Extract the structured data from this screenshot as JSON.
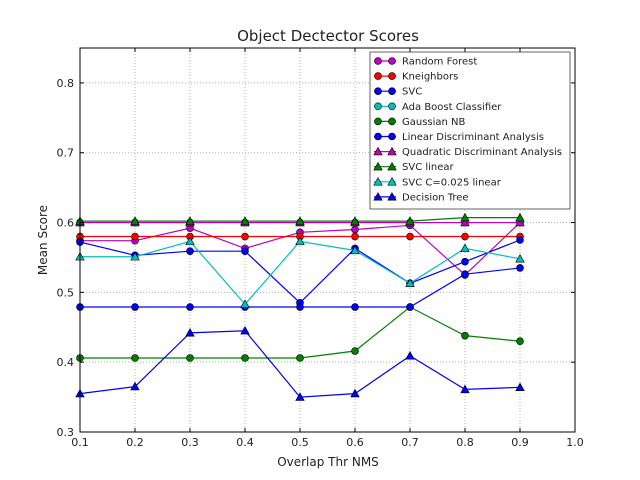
{
  "chart_data": {
    "type": "line",
    "title": "Object Dectector Scores",
    "xlabel": "Overlap Thr NMS",
    "ylabel": "Mean Score",
    "xlim": [
      0.1,
      1.0
    ],
    "ylim": [
      0.3,
      0.85
    ],
    "xticks": [
      "0.1",
      "0.2",
      "0.3",
      "0.4",
      "0.5",
      "0.6",
      "0.7",
      "0.8",
      "0.9",
      "1.0"
    ],
    "yticks": [
      "0.3",
      "0.4",
      "0.5",
      "0.6",
      "0.7",
      "0.8"
    ],
    "x": [
      0.1,
      0.2,
      0.3,
      0.4,
      0.5,
      0.6,
      0.7,
      0.8,
      0.9
    ],
    "grid": true,
    "legend_position": "top-right",
    "series": [
      {
        "name": "Random Forest",
        "color": "#bf00bf",
        "marker": "circle",
        "values": [
          0.574,
          0.574,
          0.592,
          0.563,
          0.586,
          0.59,
          0.596,
          0.525,
          0.6
        ]
      },
      {
        "name": "Kneighbors",
        "color": "#ff0000",
        "marker": "circle",
        "values": [
          0.58,
          0.58,
          0.58,
          0.58,
          0.58,
          0.58,
          0.58,
          0.58,
          0.58
        ]
      },
      {
        "name": "SVC",
        "color": "#0000ff",
        "marker": "circle",
        "values": [
          0.572,
          0.553,
          0.559,
          0.559,
          0.485,
          0.563,
          0.513,
          0.544,
          0.575
        ]
      },
      {
        "name": "Ada Boost Classifier",
        "color": "#00bfbf",
        "marker": "circle",
        "values": [
          0.6,
          0.6,
          0.6,
          0.6,
          0.6,
          0.6,
          0.6,
          0.6,
          0.6
        ]
      },
      {
        "name": "Gaussian NB",
        "color": "#008000",
        "marker": "circle",
        "values": [
          0.406,
          0.406,
          0.406,
          0.406,
          0.406,
          0.416,
          0.479,
          0.438,
          0.43
        ]
      },
      {
        "name": "Linear Discriminant Analysis",
        "color": "#0000ff",
        "marker": "circle",
        "values": [
          0.479,
          0.479,
          0.479,
          0.479,
          0.479,
          0.479,
          0.479,
          0.526,
          0.535
        ]
      },
      {
        "name": "Quadratic Discriminant Analysis",
        "color": "#bf00bf",
        "marker": "triangle",
        "values": [
          0.6,
          0.6,
          0.6,
          0.6,
          0.6,
          0.6,
          0.6,
          0.6,
          0.6
        ]
      },
      {
        "name": "SVC linear",
        "color": "#008000",
        "marker": "triangle",
        "values": [
          0.602,
          0.602,
          0.602,
          0.602,
          0.602,
          0.602,
          0.602,
          0.607,
          0.607
        ]
      },
      {
        "name": "SVC C=0.025 linear",
        "color": "#00bfbf",
        "marker": "triangle",
        "values": [
          0.551,
          0.551,
          0.573,
          0.483,
          0.573,
          0.56,
          0.513,
          0.563,
          0.548
        ]
      },
      {
        "name": "Decision Tree",
        "color": "#0000ff",
        "marker": "triangle",
        "values": [
          0.355,
          0.365,
          0.442,
          0.445,
          0.35,
          0.355,
          0.409,
          0.361,
          0.364
        ]
      }
    ]
  }
}
